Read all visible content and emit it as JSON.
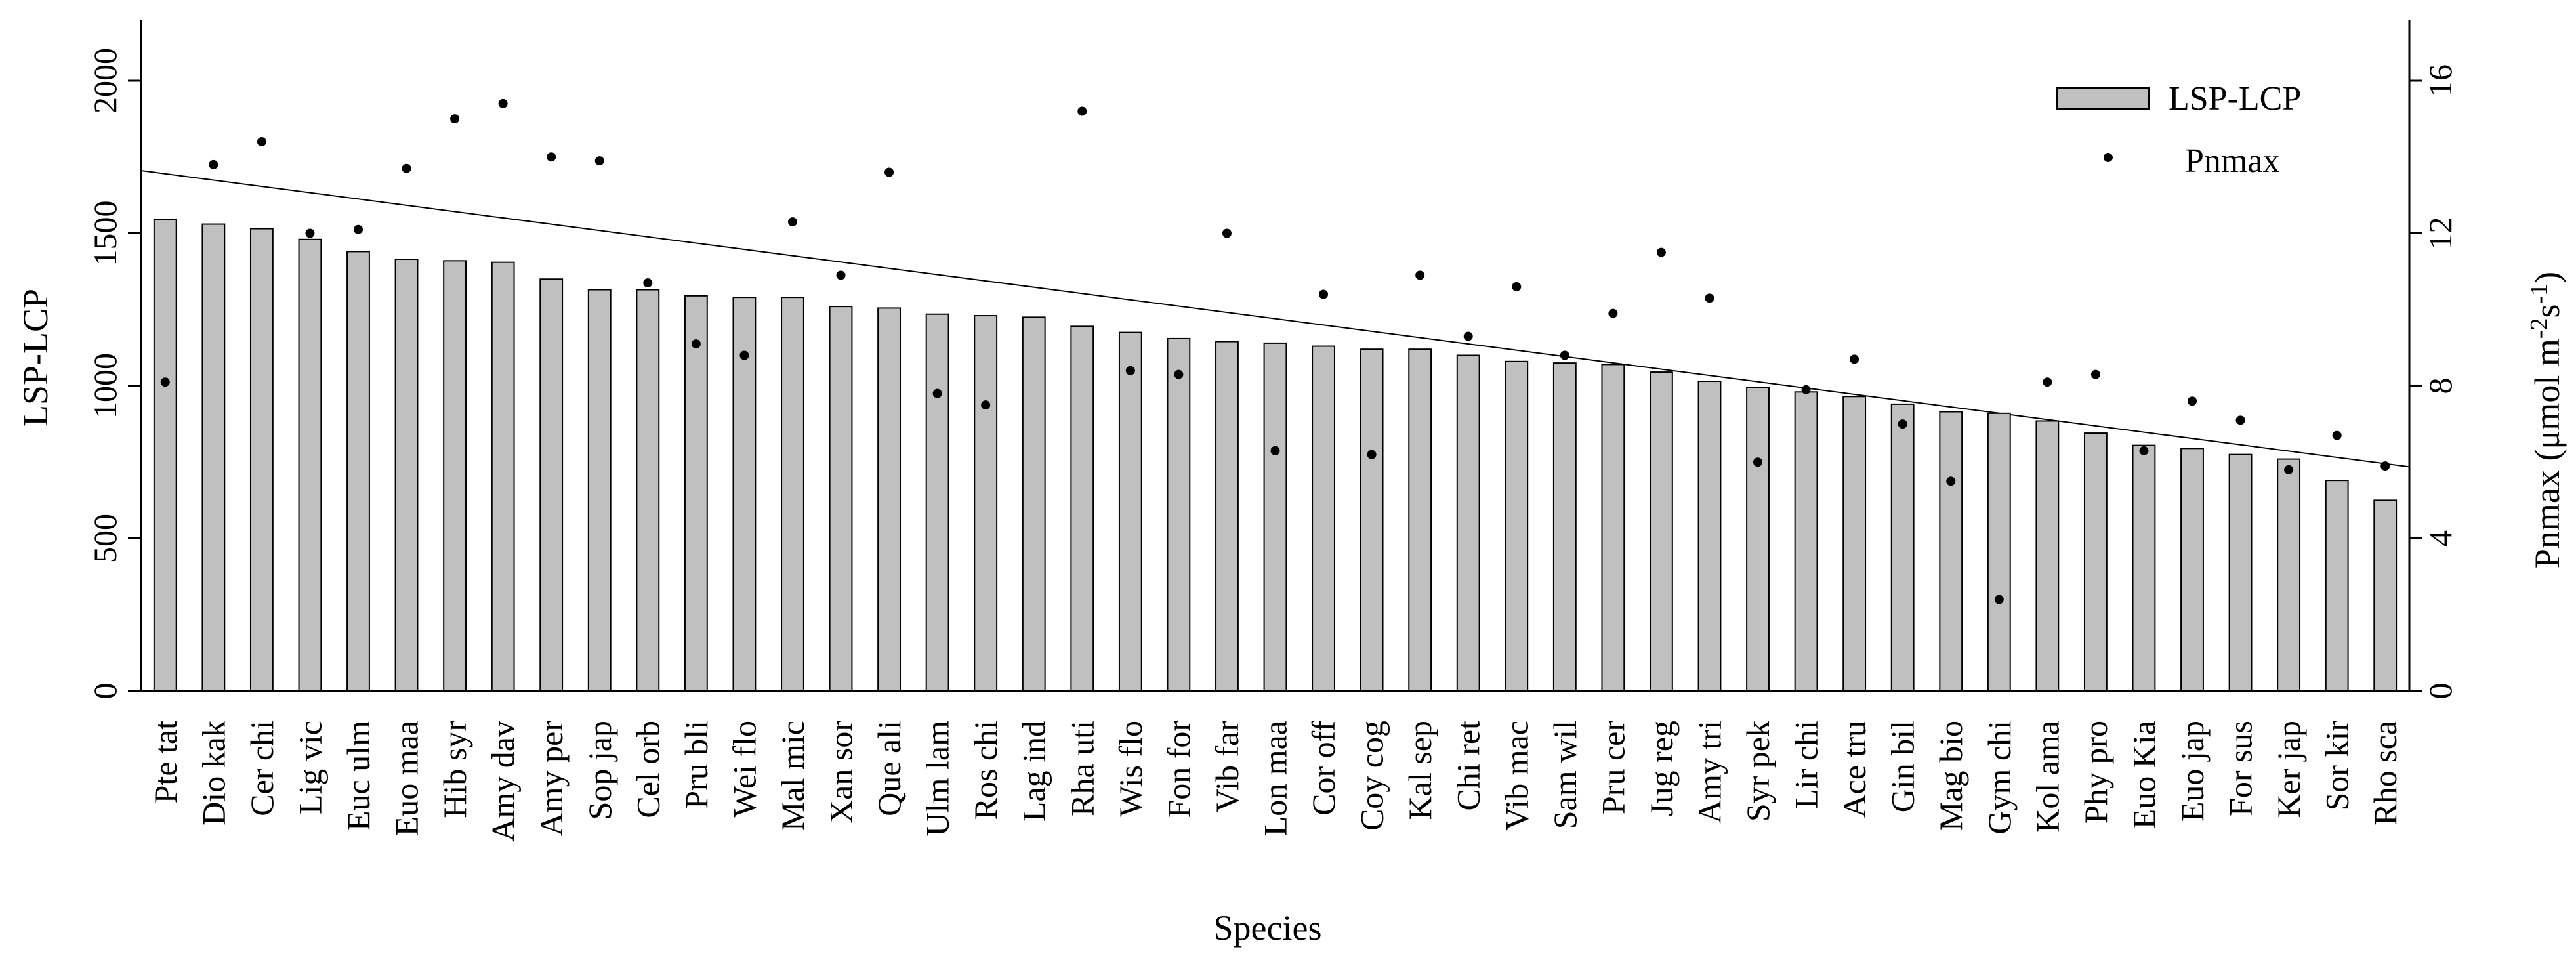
{
  "chart_data": {
    "type": "bar",
    "xlabel": "Species",
    "ylabel_left": "LSP-LCP",
    "ylabel_right": {
      "main": "Pnmax (μmol m",
      "sup1": "-2",
      "mid": "s",
      "sup2": "-1",
      "end": ")"
    },
    "ylim_left": [
      0,
      2200
    ],
    "yticks_left": [
      "0",
      "500",
      "1000",
      "1500",
      "2000"
    ],
    "ylim_right": [
      0,
      17.6
    ],
    "yticks_right": [
      "0",
      "4",
      "8",
      "12",
      "16"
    ],
    "legend_position": "top-right",
    "categories": [
      "Pte tat",
      "Dio kak",
      "Cer chi",
      "Lig vic",
      "Euc ulm",
      "Euo maa",
      "Hib syr",
      "Amy dav",
      "Amy per",
      "Sop jap",
      "Cel orb",
      "Pru bli",
      "Wei flo",
      "Mal mic",
      "Xan sor",
      "Que ali",
      "Ulm lam",
      "Ros chi",
      "Lag ind",
      "Rha uti",
      "Wis flo",
      "Fon for",
      "Vib far",
      "Lon maa",
      "Cor off",
      "Coy cog",
      "Kal sep",
      "Chi ret",
      "Vib mac",
      "Sam wil",
      "Pru cer",
      "Jug reg",
      "Amy tri",
      "Syr pek",
      "Lir chi",
      "Ace tru",
      "Gin bil",
      "Mag bio",
      "Gym chi",
      "Kol ama",
      "Phy pro",
      "Euo Kia",
      "Euo jap",
      "For sus",
      "Ker jap",
      "Sor kir",
      "Rho sca"
    ],
    "series": [
      {
        "name": "LSP-LCP",
        "type": "bar",
        "axis": "left",
        "values": [
          1545,
          1530,
          1515,
          1480,
          1440,
          1415,
          1410,
          1405,
          1350,
          1315,
          1315,
          1295,
          1290,
          1290,
          1260,
          1255,
          1235,
          1230,
          1225,
          1195,
          1175,
          1155,
          1145,
          1140,
          1130,
          1120,
          1120,
          1100,
          1080,
          1075,
          1070,
          1045,
          1015,
          995,
          980,
          965,
          940,
          915,
          910,
          885,
          845,
          805,
          795,
          775,
          760,
          690,
          625
        ],
        "color": "#c0c0c0"
      },
      {
        "name": "Pnmax",
        "type": "scatter",
        "axis": "right",
        "values": [
          8.1,
          13.8,
          14.4,
          12.0,
          12.1,
          13.7,
          15.0,
          15.4,
          14.0,
          13.9,
          10.7,
          9.1,
          8.8,
          12.3,
          10.9,
          13.6,
          7.8,
          7.5,
          null,
          15.2,
          8.4,
          8.3,
          12.0,
          6.3,
          10.4,
          6.2,
          10.9,
          9.3,
          10.6,
          8.8,
          9.9,
          11.5,
          10.3,
          6.0,
          7.9,
          8.7,
          7.0,
          5.5,
          2.4,
          8.1,
          8.3,
          6.3,
          7.6,
          7.1,
          5.8,
          6.7,
          5.9
        ],
        "color": "#000000"
      }
    ],
    "trend_line": {
      "axis": "left",
      "x_start": "Pte tat",
      "y_start": 1695,
      "x_end": "Rho sca",
      "y_end": 745
    }
  }
}
